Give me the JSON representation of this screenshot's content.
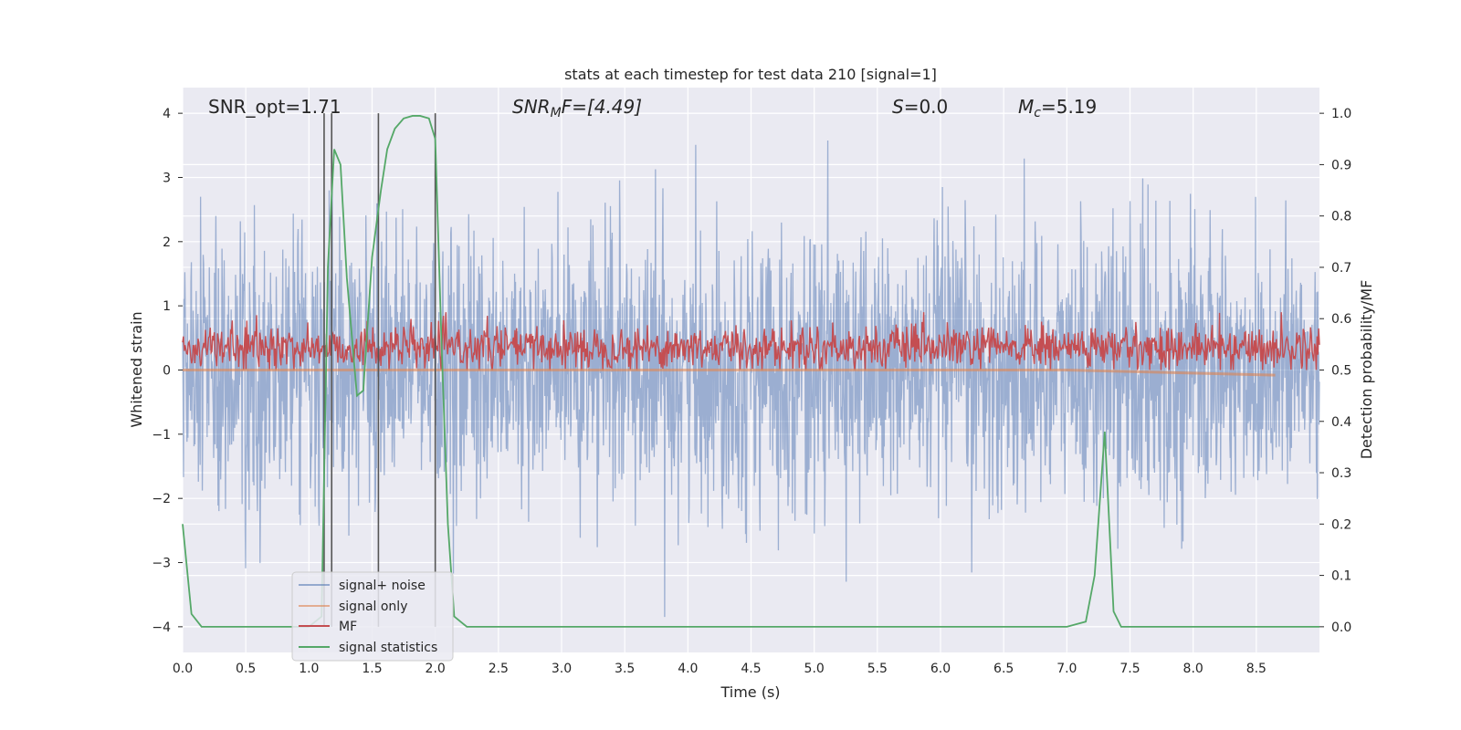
{
  "chart_data": {
    "type": "line",
    "title": "stats at each timestep for test data 210 [signal=1]",
    "xlabel": "Time (s)",
    "ylabel": "Whitened strain",
    "y2label": "Detection probability/MF",
    "xlim": [
      0.0,
      9.0
    ],
    "ylim": [
      -4.4,
      4.4
    ],
    "y2lim": [
      -0.05,
      1.05
    ],
    "xticks": [
      "0.0",
      "0.5",
      "1.0",
      "1.5",
      "2.0",
      "2.5",
      "3.0",
      "3.5",
      "4.0",
      "4.5",
      "5.0",
      "5.5",
      "6.0",
      "6.5",
      "7.0",
      "7.5",
      "8.0",
      "8.5"
    ],
    "yticks": [
      "4",
      "3",
      "2",
      "1",
      "0",
      "−1",
      "−2",
      "−3",
      "−4"
    ],
    "y2ticks": [
      "1.0",
      "0.9",
      "0.8",
      "0.7",
      "0.6",
      "0.5",
      "0.4",
      "0.3",
      "0.2",
      "0.1",
      "0.0"
    ],
    "grid": true,
    "legend_position": "lower-left",
    "annotations": {
      "snr_opt": "SNR_opt=1.71",
      "snr_mf_main": "SNR",
      "snr_mf_sub": "M",
      "snr_mf_rest": "F=[4.49]",
      "s_main": "S",
      "s_rest": "=0.0",
      "mc_main": "M",
      "mc_sub": "c",
      "mc_rest": "=5.19"
    },
    "vertical_markers": [
      1.12,
      1.18,
      1.55,
      2.0
    ],
    "series": [
      {
        "name": "signal+ noise",
        "color": "#4c72b0",
        "amplitude_range": [
          -4.0,
          4.0
        ]
      },
      {
        "name": "signal only",
        "color": "#dd8452",
        "x": [
          0.0,
          7.0,
          8.65
        ],
        "y": [
          0.0,
          0.0,
          -0.08
        ]
      },
      {
        "name": "MF",
        "color": "#c44e52",
        "range": [
          0.0,
          0.9
        ]
      },
      {
        "name": "signal statistics",
        "color": "#55a868",
        "axis": "right",
        "x": [
          0.0,
          0.07,
          0.15,
          0.3,
          0.45,
          0.6,
          0.8,
          1.0,
          1.1,
          1.15,
          1.2,
          1.25,
          1.3,
          1.38,
          1.43,
          1.5,
          1.57,
          1.62,
          1.68,
          1.75,
          1.82,
          1.88,
          1.95,
          2.0,
          2.05,
          2.1,
          2.15,
          2.25,
          2.5,
          3.0,
          4.0,
          5.0,
          6.0,
          7.0,
          7.15,
          7.22,
          7.3,
          7.37,
          7.43,
          7.55,
          8.0,
          8.5,
          9.0
        ],
        "y": [
          0.2,
          0.025,
          0.0,
          0.0,
          0.0,
          0.0,
          0.0,
          0.0,
          0.02,
          0.7,
          0.93,
          0.9,
          0.68,
          0.45,
          0.46,
          0.72,
          0.85,
          0.93,
          0.97,
          0.99,
          0.995,
          0.995,
          0.99,
          0.95,
          0.55,
          0.2,
          0.02,
          0.0,
          0.0,
          0.0,
          0.0,
          0.0,
          0.0,
          0.0,
          0.01,
          0.1,
          0.38,
          0.03,
          0.0,
          0.0,
          0.0,
          0.0,
          0.0
        ]
      }
    ]
  },
  "colors": {
    "plot_background": "#eaeaf2",
    "grid": "#ffffff",
    "marker_line": "#555555"
  }
}
